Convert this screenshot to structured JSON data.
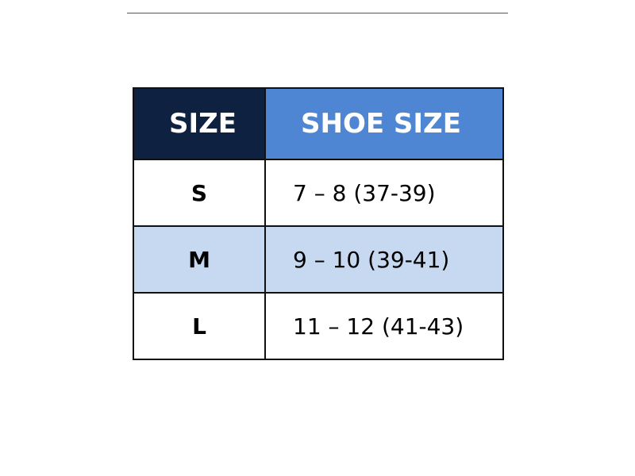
{
  "table": {
    "header": [
      "SIZE",
      "SHOE SIZE"
    ],
    "rows": [
      [
        "S",
        "7 – 8 (37-39)"
      ],
      [
        "M",
        "9 – 10 (39-41)"
      ],
      [
        "L",
        "11 – 12 (41-43)"
      ]
    ]
  }
}
